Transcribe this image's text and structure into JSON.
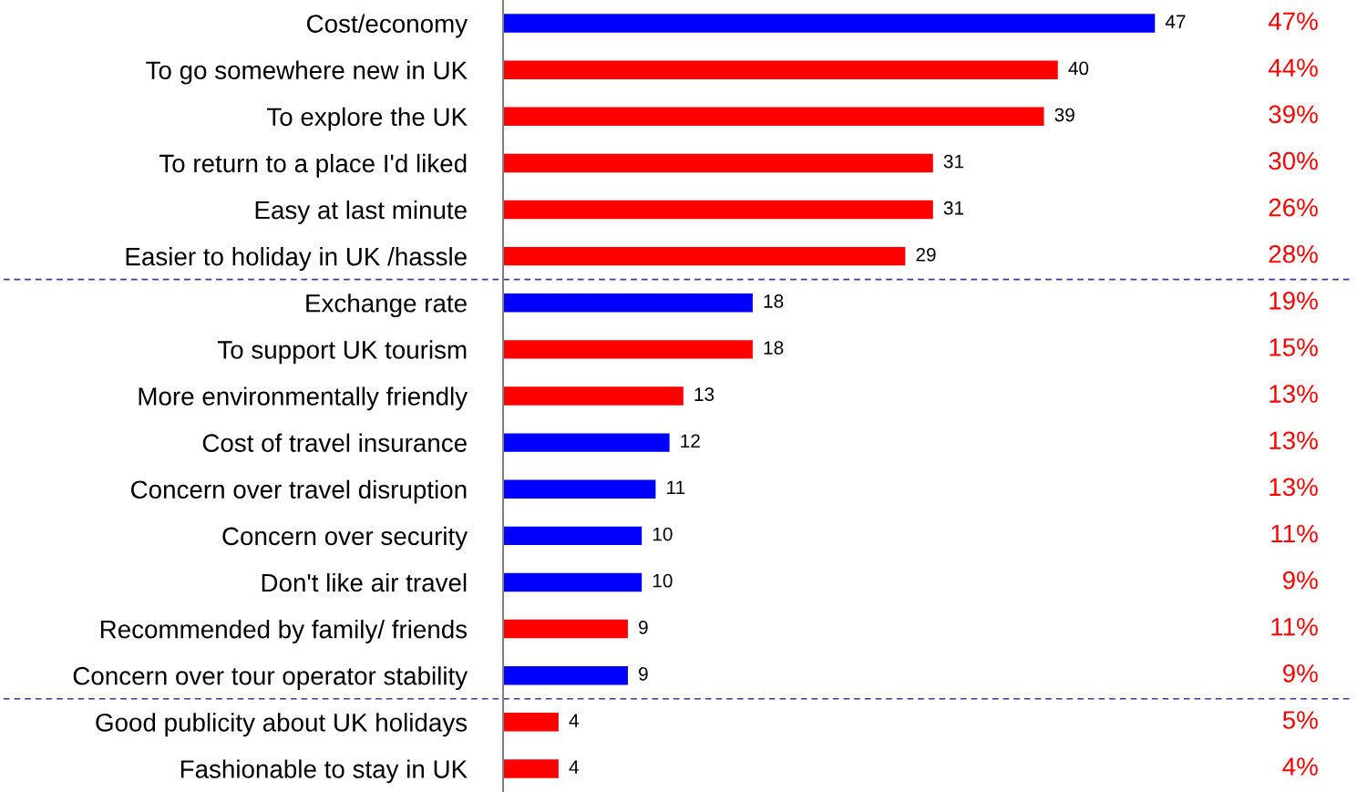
{
  "chart_data": {
    "type": "bar",
    "orientation": "horizontal",
    "categories": [
      "Cost/economy",
      "To go somewhere new in UK",
      "To explore the UK",
      "To return to a place I'd liked",
      "Easy at last minute",
      "Easier to holiday in UK /hassle",
      "Exchange rate",
      "To support UK tourism",
      "More environmentally friendly",
      "Cost of travel insurance",
      "Concern over travel disruption",
      "Concern over security",
      "Don't like air travel",
      "Recommended by family/ friends",
      "Concern over tour operator stability",
      "Good publicity about UK holidays",
      "Fashionable to stay in UK"
    ],
    "values": [
      47,
      40,
      39,
      31,
      31,
      29,
      18,
      18,
      13,
      12,
      11,
      10,
      10,
      9,
      9,
      4,
      4
    ],
    "colors": [
      "#0000ff",
      "#ff0000",
      "#ff0000",
      "#ff0000",
      "#ff0000",
      "#ff0000",
      "#0000ff",
      "#ff0000",
      "#ff0000",
      "#0000ff",
      "#0000ff",
      "#0000ff",
      "#0000ff",
      "#ff0000",
      "#0000ff",
      "#ff0000",
      "#ff0000"
    ],
    "data_labels": true,
    "annotations": [
      "47%",
      "44%",
      "39%",
      "30%",
      "26%",
      "28%",
      "19%",
      "15%",
      "13%",
      "13%",
      "13%",
      "11%",
      "9%",
      "11%",
      "9%",
      "5%",
      "4%"
    ],
    "grid": false,
    "legend": false
  }
}
